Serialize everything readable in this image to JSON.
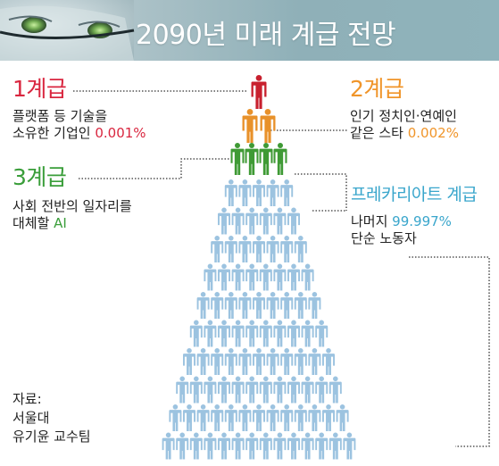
{
  "title": "2090년 미래 계급 전망",
  "colors": {
    "tier1": "#d9263f",
    "tier2": "#f0952a",
    "tier3": "#3a9e3a",
    "precariat": "#3aa6cc",
    "figure_red": "#c8202e",
    "figure_orange": "#e8912a",
    "figure_green": "#3f9a35",
    "figure_blue": "#9cc3e0",
    "leader": "#333333"
  },
  "tiers": [
    {
      "id": "tier1",
      "title": "1계급",
      "line1": "플랫폼 등 기술을",
      "line2_prefix": "소유한 기업인 ",
      "line2_value": "0.001%",
      "figures": 1
    },
    {
      "id": "tier2",
      "title": "2계급",
      "line1": "인기 정치인·연예인",
      "line2_prefix": "같은 스타 ",
      "line2_value": "0.002%",
      "figures": 2
    },
    {
      "id": "tier3",
      "title": "3계급",
      "line1": "사회 전반의 일자리를",
      "line2_prefix": "대체할 ",
      "line2_value": "AI",
      "figures": 4
    },
    {
      "id": "precariat",
      "title": "프레카리아트 계급",
      "line1_prefix": "나머지 ",
      "line1_value": "99.997%",
      "line2": "단순 노동자",
      "figures_rows": [
        5,
        6,
        7,
        8,
        9,
        10,
        11,
        12,
        13,
        14
      ]
    }
  ],
  "source": {
    "label": "자료:",
    "line1": "서울대",
    "line2": "유기윤 교수팀"
  },
  "icons": [
    "person-icon",
    "face-graphic"
  ]
}
